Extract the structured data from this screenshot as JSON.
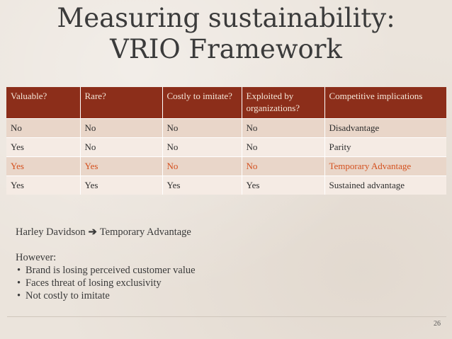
{
  "slide": {
    "title_line1": "Measuring sustainability:",
    "title_line2": "VRIO Framework",
    "page_number": "26"
  },
  "table": {
    "headers": [
      "Valuable?",
      "Rare?",
      "Costly to imitate?",
      "Exploited by organizations?",
      "Competitive implications"
    ],
    "rows": [
      [
        "No",
        "No",
        "No",
        "No",
        "Disadvantage"
      ],
      [
        "Yes",
        "No",
        "No",
        "No",
        "Parity"
      ],
      [
        "Yes",
        "Yes",
        "No",
        "No",
        "Temporary Advantage"
      ],
      [
        "Yes",
        "Yes",
        "Yes",
        "Yes",
        "Sustained advantage"
      ]
    ],
    "highlight_color": "#d4501e",
    "header_bg": "#8c2e1a"
  },
  "notes": {
    "lead_subject": "Harley Davidson",
    "lead_arrow_icon": "arrow-right-icon",
    "lead_result": "Temporary Advantage",
    "however": "However:",
    "bullets": [
      "Brand is losing perceived customer value",
      "Faces threat of losing exclusivity",
      "Not costly to imitate"
    ]
  }
}
